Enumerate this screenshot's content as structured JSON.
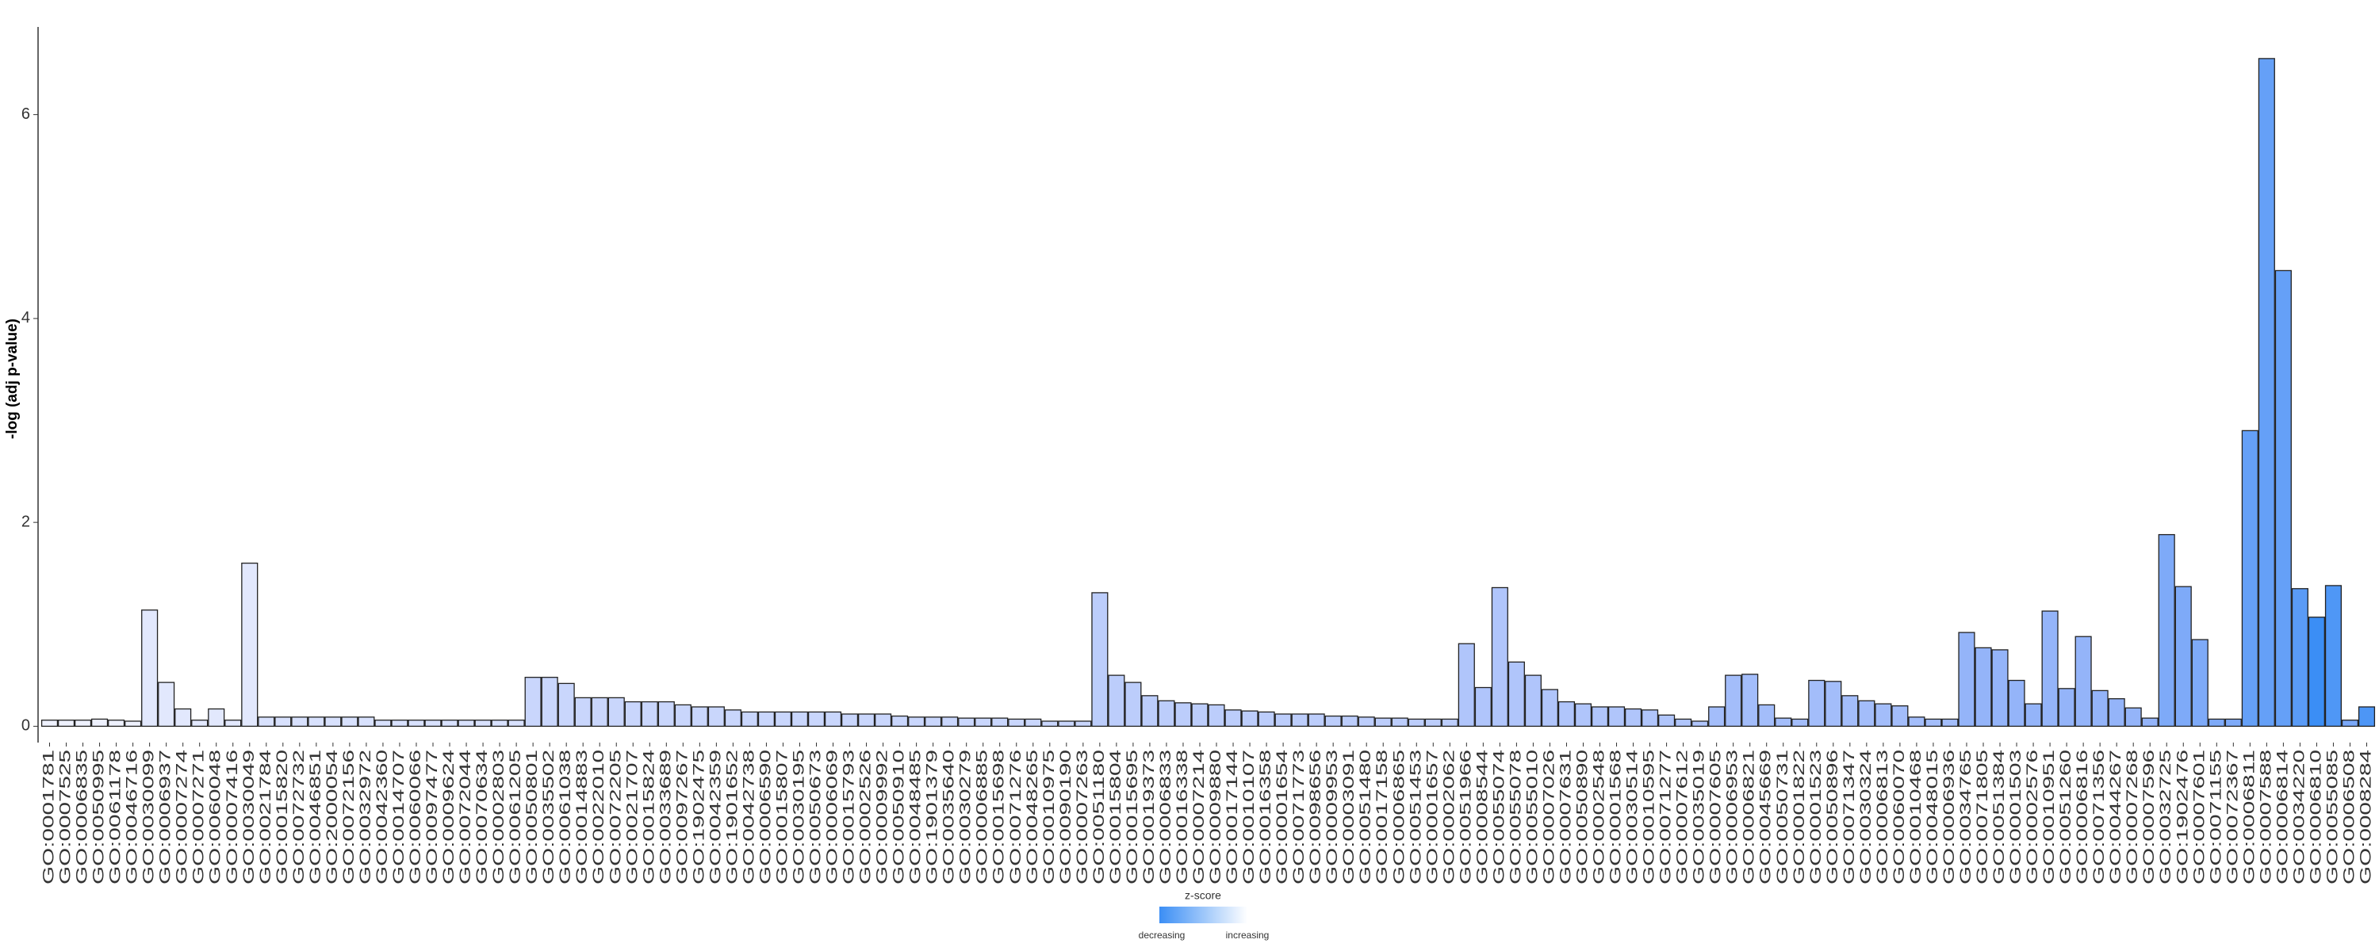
{
  "chart_data": {
    "type": "bar",
    "y_label": "-log (adj p-value)",
    "ylim": [
      -0.16,
      6.86
    ],
    "yticks": [
      0,
      2,
      4,
      6
    ],
    "grid": false,
    "categories": [
      "GO:0001781",
      "GO:0007525",
      "GO:0006835",
      "GO:0050995",
      "GO:0061178",
      "GO:0046716",
      "GO:0030099",
      "GO:0006937",
      "GO:0007274",
      "GO:0007271",
      "GO:0060048",
      "GO:0007416",
      "GO:0030049",
      "GO:0021784",
      "GO:0015820",
      "GO:0072732",
      "GO:0046851",
      "GO:2000054",
      "GO:0072156",
      "GO:0032972",
      "GO:0042360",
      "GO:0014707",
      "GO:0060066",
      "GO:0097477",
      "GO:0009624",
      "GO:0072044",
      "GO:0070634",
      "GO:0002803",
      "GO:0061205",
      "GO:0050801",
      "GO:0035502",
      "GO:0061038",
      "GO:0014883",
      "GO:0022010",
      "GO:0072205",
      "GO:0021707",
      "GO:0015824",
      "GO:0033689",
      "GO:0097267",
      "GO:1902475",
      "GO:0042359",
      "GO:1901652",
      "GO:0042738",
      "GO:0006590",
      "GO:0015807",
      "GO:0030195",
      "GO:0050673",
      "GO:0006069",
      "GO:0015793",
      "GO:0002526",
      "GO:0009992",
      "GO:0050910",
      "GO:0048485",
      "GO:1901379",
      "GO:0035640",
      "GO:0030279",
      "GO:0006885",
      "GO:0015698",
      "GO:0071276",
      "GO:0048265",
      "GO:0010975",
      "GO:0090190",
      "GO:0007263",
      "GO:0051180",
      "GO:0015804",
      "GO:0015695",
      "GO:0019373",
      "GO:0006833",
      "GO:0016338",
      "GO:0007214",
      "GO:0009880",
      "GO:0017144",
      "GO:0010107",
      "GO:0016358",
      "GO:0001654",
      "GO:0071773",
      "GO:0098656",
      "GO:0009953",
      "GO:0003091",
      "GO:0051480",
      "GO:0017158",
      "GO:0006865",
      "GO:0051453",
      "GO:0001657",
      "GO:0002062",
      "GO:0051966",
      "GO:0008544",
      "GO:0055074",
      "GO:0055078",
      "GO:0055010",
      "GO:0007026",
      "GO:0007631",
      "GO:0050890",
      "GO:0002548",
      "GO:0001568",
      "GO:0030514",
      "GO:0010595",
      "GO:0071277",
      "GO:0007612",
      "GO:0035019",
      "GO:0007605",
      "GO:0006953",
      "GO:0006821",
      "GO:0045669",
      "GO:0050731",
      "GO:0001822",
      "GO:0001523",
      "GO:0050896",
      "GO:0071347",
      "GO:0030324",
      "GO:0006813",
      "GO:0060070",
      "GO:0010468",
      "GO:0048015",
      "GO:0006936",
      "GO:0034765",
      "GO:0071805",
      "GO:0051384",
      "GO:0001503",
      "GO:0002576",
      "GO:0010951",
      "GO:0051260",
      "GO:0006816",
      "GO:0071356",
      "GO:0044267",
      "GO:0007268",
      "GO:0007596",
      "GO:0032725",
      "GO:1902476",
      "GO:0007601",
      "GO:0071155",
      "GO:0072367",
      "GO:0006811",
      "GO:0007588",
      "GO:0006814",
      "GO:0034220",
      "GO:0006810",
      "GO:0055085",
      "GO:0006508",
      "GO:0008284"
    ],
    "values": [
      0.06,
      0.06,
      0.06,
      0.07,
      0.06,
      0.05,
      1.14,
      0.43,
      0.17,
      0.06,
      0.17,
      0.06,
      1.6,
      0.09,
      0.09,
      0.09,
      0.09,
      0.09,
      0.09,
      0.09,
      0.06,
      0.06,
      0.06,
      0.06,
      0.06,
      0.06,
      0.06,
      0.06,
      0.06,
      0.48,
      0.48,
      0.42,
      0.28,
      0.28,
      0.28,
      0.24,
      0.24,
      0.24,
      0.21,
      0.19,
      0.19,
      0.16,
      0.14,
      0.14,
      0.14,
      0.14,
      0.14,
      0.14,
      0.12,
      0.12,
      0.12,
      0.1,
      0.09,
      0.09,
      0.09,
      0.08,
      0.08,
      0.08,
      0.07,
      0.07,
      0.05,
      0.05,
      0.05,
      1.31,
      0.5,
      0.43,
      0.3,
      0.25,
      0.23,
      0.22,
      0.21,
      0.16,
      0.15,
      0.14,
      0.12,
      0.12,
      0.12,
      0.1,
      0.1,
      0.09,
      0.08,
      0.08,
      0.07,
      0.07,
      0.07,
      0.81,
      0.38,
      1.36,
      0.63,
      0.5,
      0.36,
      0.24,
      0.22,
      0.19,
      0.19,
      0.17,
      0.16,
      0.11,
      0.07,
      0.05,
      0.19,
      0.5,
      0.51,
      0.21,
      0.08,
      0.07,
      0.45,
      0.44,
      0.3,
      0.25,
      0.22,
      0.2,
      0.09,
      0.07,
      0.07,
      0.92,
      0.77,
      0.75,
      0.45,
      0.22,
      1.13,
      0.37,
      0.88,
      0.35,
      0.27,
      0.18,
      0.08,
      1.88,
      1.37,
      0.85,
      0.07,
      0.07,
      2.9,
      6.55,
      4.47,
      1.35,
      1.07,
      1.38,
      0.06,
      0.19
    ],
    "colors": [
      "#eef1fd",
      "#eef1fd",
      "#eef1fd",
      "#eef1fd",
      "#eef1fd",
      "#eef1fd",
      "#e2e8fd",
      "#e2e8fd",
      "#e2e8fd",
      "#e2e8fd",
      "#e2e8fd",
      "#e2e8fd",
      "#e2e8fd",
      "#d8e1fd",
      "#d8e1fd",
      "#d8e1fd",
      "#d8e1fd",
      "#d8e1fd",
      "#d8e1fd",
      "#d8e1fd",
      "#d8e1fd",
      "#d8e1fd",
      "#d8e1fd",
      "#d8e1fd",
      "#d8e1fd",
      "#d8e1fd",
      "#d8e1fd",
      "#d8e1fd",
      "#d8e1fd",
      "#c9d6fc",
      "#c9d6fc",
      "#c9d6fc",
      "#c9d6fc",
      "#c9d6fc",
      "#c9d6fc",
      "#c9d6fc",
      "#c9d6fc",
      "#c9d6fc",
      "#c9d6fc",
      "#c9d6fc",
      "#c9d6fc",
      "#c9d6fc",
      "#c9d6fc",
      "#c9d6fc",
      "#c9d6fc",
      "#c9d6fc",
      "#c9d6fc",
      "#c9d6fc",
      "#c9d6fc",
      "#c9d6fc",
      "#c9d6fc",
      "#c9d6fc",
      "#c9d6fc",
      "#c9d6fc",
      "#c9d6fc",
      "#c9d6fc",
      "#c9d6fc",
      "#c9d6fc",
      "#c9d6fc",
      "#c9d6fc",
      "#c9d6fc",
      "#c9d6fc",
      "#c9d6fc",
      "#bccdfb",
      "#bccdfb",
      "#bccdfb",
      "#bccdfb",
      "#bccdfb",
      "#bccdfb",
      "#bccdfb",
      "#bccdfb",
      "#bccdfb",
      "#bccdfb",
      "#bccdfb",
      "#bccdfb",
      "#bccdfb",
      "#bccdfb",
      "#bccdfb",
      "#bccdfb",
      "#bccdfb",
      "#bccdfb",
      "#bccdfb",
      "#bccdfb",
      "#bccdfb",
      "#bccdfb",
      "#b0c5fb",
      "#b0c5fb",
      "#b0c5fb",
      "#b0c5fb",
      "#b0c5fb",
      "#b0c5fb",
      "#b0c5fb",
      "#b0c5fb",
      "#b0c5fb",
      "#b0c5fb",
      "#b0c5fb",
      "#b0c5fb",
      "#b0c5fb",
      "#b0c5fb",
      "#b0c5fb",
      "#a3bdfa",
      "#a3bdfa",
      "#a3bdfa",
      "#a3bdfa",
      "#a3bdfa",
      "#a3bdfa",
      "#a3bdfa",
      "#a3bdfa",
      "#a3bdfa",
      "#a3bdfa",
      "#a3bdfa",
      "#a3bdfa",
      "#a3bdfa",
      "#a3bdfa",
      "#a3bdfa",
      "#94b4f9",
      "#94b4f9",
      "#94b4f9",
      "#94b4f9",
      "#94b4f9",
      "#94b4f9",
      "#94b4f9",
      "#94b4f9",
      "#94b4f9",
      "#94b4f9",
      "#94b4f9",
      "#94b4f9",
      "#7eaaf8",
      "#7eaaf8",
      "#7eaaf8",
      "#7eaaf8",
      "#7eaaf8",
      "#65a0f7",
      "#65a0f7",
      "#65a0f7",
      "#5a9bf6",
      "#3b8ef5",
      "#4f97f6",
      "#7aa8f8",
      "#4d96f6"
    ],
    "legend": {
      "title": "z-score",
      "low_label": "decreasing",
      "high_label": "increasing",
      "low_color": "#3b8ef5",
      "high_color": "#ffffff"
    }
  }
}
